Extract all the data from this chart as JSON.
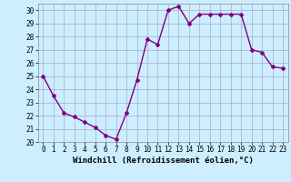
{
  "x": [
    0,
    1,
    2,
    3,
    4,
    5,
    6,
    7,
    8,
    9,
    10,
    11,
    12,
    13,
    14,
    15,
    16,
    17,
    18,
    19,
    20,
    21,
    22,
    23
  ],
  "y": [
    25,
    23.5,
    22.2,
    21.9,
    21.5,
    21.1,
    20.5,
    20.2,
    22.2,
    24.7,
    27.8,
    27.4,
    30.0,
    30.3,
    29.0,
    29.7,
    29.7,
    29.7,
    29.7,
    29.7,
    27.0,
    26.8,
    25.7,
    25.6
  ],
  "line_color": "#800080",
  "marker": "D",
  "marker_size": 2,
  "bg_color": "#cceeff",
  "grid_color": "#aaaacc",
  "xlabel": "Windchill (Refroidissement éolien,°C)",
  "xlim": [
    -0.5,
    23.5
  ],
  "ylim": [
    20,
    30.5
  ],
  "yticks": [
    20,
    21,
    22,
    23,
    24,
    25,
    26,
    27,
    28,
    29,
    30
  ],
  "xticks": [
    0,
    1,
    2,
    3,
    4,
    5,
    6,
    7,
    8,
    9,
    10,
    11,
    12,
    13,
    14,
    15,
    16,
    17,
    18,
    19,
    20,
    21,
    22,
    23
  ],
  "tick_fontsize": 5.5,
  "xlabel_fontsize": 6.5,
  "line_width": 1.0
}
